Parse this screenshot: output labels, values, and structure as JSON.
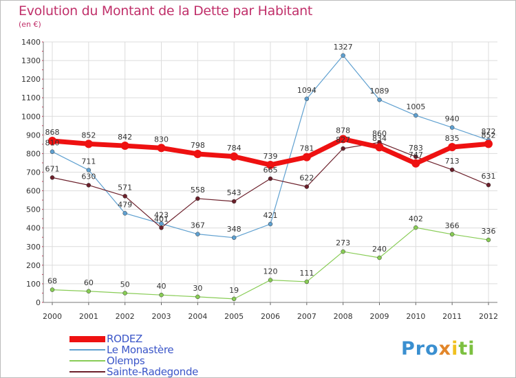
{
  "header": {
    "title": "Evolution du Montant de la Dette par Habitant",
    "subtitle": "(en €)"
  },
  "logo": {
    "parts": [
      "Pro",
      "x",
      "i",
      "ti"
    ]
  },
  "chart_data": {
    "type": "line",
    "title": "Evolution du Montant de la Dette par Habitant",
    "ylabel": "(en €)",
    "xlabel": "",
    "ylim": [
      0,
      1400
    ],
    "yticks": [
      0,
      100,
      200,
      300,
      400,
      500,
      600,
      700,
      800,
      900,
      1000,
      1100,
      1200,
      1300,
      1400
    ],
    "categories": [
      "2000",
      "2001",
      "2002",
      "2003",
      "2004",
      "2005",
      "2006",
      "2007",
      "2008",
      "2009",
      "2010",
      "2011",
      "2012"
    ],
    "legend_position": "bottom-left",
    "grid": true,
    "series": [
      {
        "name": "RODEZ",
        "color": "#ee1111",
        "values": [
          868,
          852,
          842,
          830,
          798,
          784,
          739,
          781,
          878,
          834,
          747,
          835,
          852
        ],
        "labels": [
          "868",
          "852",
          "842",
          "830",
          "798",
          "784",
          "739",
          "781",
          "878",
          "834",
          "747",
          "835",
          "852"
        ]
      },
      {
        "name": "Le Monastère",
        "color": "#5fa0d0",
        "values": [
          810,
          711,
          479,
          423,
          367,
          348,
          421,
          1094,
          1327,
          1089,
          1005,
          940,
          872
        ],
        "labels": [
          "810",
          "711",
          "479",
          "423",
          "367",
          "348",
          "421",
          "1094",
          "1327",
          "1089",
          "1005",
          "940",
          "872"
        ]
      },
      {
        "name": "Olemps",
        "color": "#88cc55",
        "values": [
          68,
          60,
          50,
          40,
          30,
          19,
          120,
          111,
          273,
          240,
          402,
          366,
          336
        ],
        "labels": [
          "68",
          "60",
          "50",
          "40",
          "30",
          "19",
          "120",
          "111",
          "273",
          "240",
          "402",
          "366",
          "336"
        ]
      },
      {
        "name": "Sainte-Radegonde",
        "color": "#6b1f2a",
        "values": [
          671,
          630,
          571,
          401,
          558,
          543,
          665,
          622,
          827,
          860,
          783,
          713,
          631
        ],
        "labels": [
          "671",
          "630",
          "571",
          "401",
          "558",
          "543",
          "665",
          "622",
          "827",
          "860",
          "783",
          "713",
          "631"
        ]
      }
    ]
  }
}
